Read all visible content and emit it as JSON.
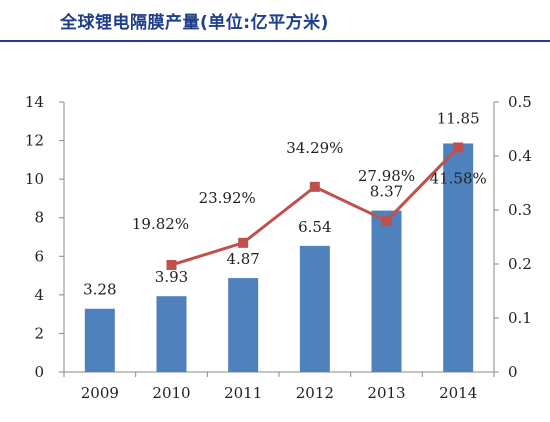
{
  "title": "全球锂电隔膜产量(单位:亿平方米)",
  "chart_data": {
    "type": "bar",
    "categories": [
      "2009",
      "2010",
      "2011",
      "2012",
      "2013",
      "2014"
    ],
    "series": [
      {
        "type": "bar",
        "axis": "left",
        "values": [
          3.28,
          3.93,
          4.87,
          6.54,
          8.37,
          11.85
        ],
        "labels": [
          "3.28",
          "3.93",
          "4.87",
          "6.54",
          "8.37",
          "11.85"
        ],
        "color": "#4f81bd"
      },
      {
        "type": "line",
        "axis": "right",
        "values": [
          null,
          0.1982,
          0.2392,
          0.3429,
          0.2798,
          0.4158
        ],
        "labels": [
          "",
          "19.82%",
          "23.92%",
          "34.29%",
          "27.98%",
          "41.58%"
        ],
        "color": "#c0504d"
      }
    ],
    "y_left": {
      "min": 0,
      "max": 14,
      "ticks": [
        "0",
        "2",
        "4",
        "6",
        "8",
        "10",
        "12",
        "14"
      ]
    },
    "y_right": {
      "min": 0,
      "max": 0.5,
      "ticks": [
        "0",
        "0.1",
        "0.2",
        "0.3",
        "0.4",
        "0.5"
      ]
    },
    "grid": false,
    "legend": "none"
  }
}
